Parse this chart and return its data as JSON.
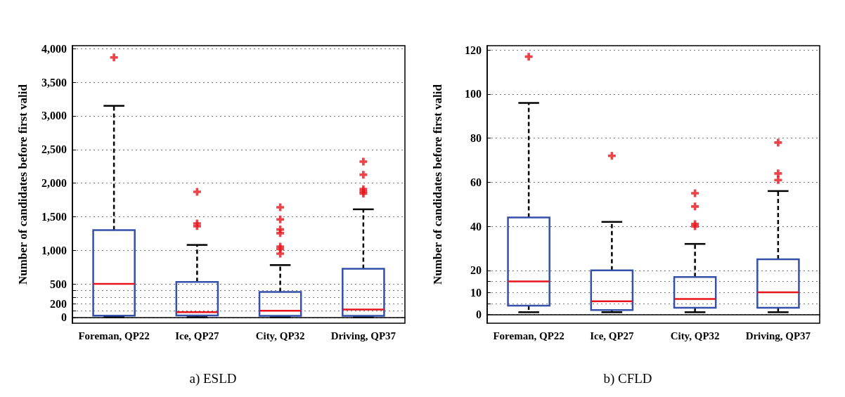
{
  "chart_data": [
    {
      "type": "box",
      "title": "a) ESLD",
      "ylabel": "Number of candidates before first valid",
      "categories": [
        "Foreman, QP22",
        "Ice, QP27",
        "City, QP32",
        "Driving, QP37"
      ],
      "ylim": [
        -85,
        4045
      ],
      "yticks": [
        0,
        {
          "value": 100,
          "label": null
        },
        200,
        {
          "value": 300,
          "label": null
        },
        {
          "value": 400,
          "label": null
        },
        500,
        {
          "value": 1000,
          "label": "1,000"
        },
        {
          "value": 1500,
          "label": "1,500"
        },
        {
          "value": 2000,
          "label": "2,000"
        },
        {
          "value": 2500,
          "label": "2,500"
        },
        {
          "value": 3000,
          "label": "3,000"
        },
        {
          "value": 3500,
          "label": "3,500"
        },
        {
          "value": 4000,
          "label": "4,000"
        }
      ],
      "grid": "y",
      "marker": "cross",
      "series": [
        {
          "color": "#3550a8",
          "boxes": [
            {
              "low": 8,
              "q1": 27,
              "median": 500,
              "q3": 1300,
              "high": 3150,
              "outliers": [
                3870
              ]
            },
            {
              "low": 5,
              "q1": 30,
              "median": 80,
              "q3": 530,
              "high": 1080,
              "outliers": [
                1870,
                1400,
                1360
              ]
            },
            {
              "low": 5,
              "q1": 25,
              "median": 100,
              "q3": 380,
              "high": 780,
              "outliers": [
                1640,
                1460,
                1310,
                1255,
                1055,
                1020,
                950
              ]
            },
            {
              "low": 5,
              "q1": 25,
              "median": 120,
              "q3": 725,
              "high": 1610,
              "outliers": [
                2320,
                2125,
                1910,
                1875,
                1845
              ]
            }
          ]
        }
      ]
    },
    {
      "type": "box",
      "title": "b) CFLD",
      "ylabel": "Number of candidates before first valid",
      "categories": [
        "Foreman, QP22",
        "Ice, QP27",
        "City, QP32",
        "Driving, QP37"
      ],
      "ylim": [
        -4,
        122
      ],
      "yticks": [
        0,
        {
          "value": 5,
          "label": null
        },
        10,
        {
          "value": 15,
          "label": null
        },
        20,
        40,
        60,
        80,
        100,
        120
      ],
      "grid": "y",
      "marker": "cross",
      "series": [
        {
          "color": "#3550a8",
          "boxes": [
            {
              "low": 1,
              "q1": 4,
              "median": 15,
              "q3": 44,
              "high": 96,
              "outliers": [
                117
              ]
            },
            {
              "low": 1,
              "q1": 2,
              "median": 6,
              "q3": 20,
              "high": 42,
              "outliers": [
                72
              ]
            },
            {
              "low": 1,
              "q1": 3,
              "median": 7,
              "q3": 17,
              "high": 32,
              "outliers": [
                55,
                49,
                41,
                40
              ]
            },
            {
              "low": 1,
              "q1": 3,
              "median": 10,
              "q3": 25,
              "high": 56,
              "outliers": [
                78,
                64,
                61
              ]
            }
          ]
        }
      ]
    }
  ]
}
